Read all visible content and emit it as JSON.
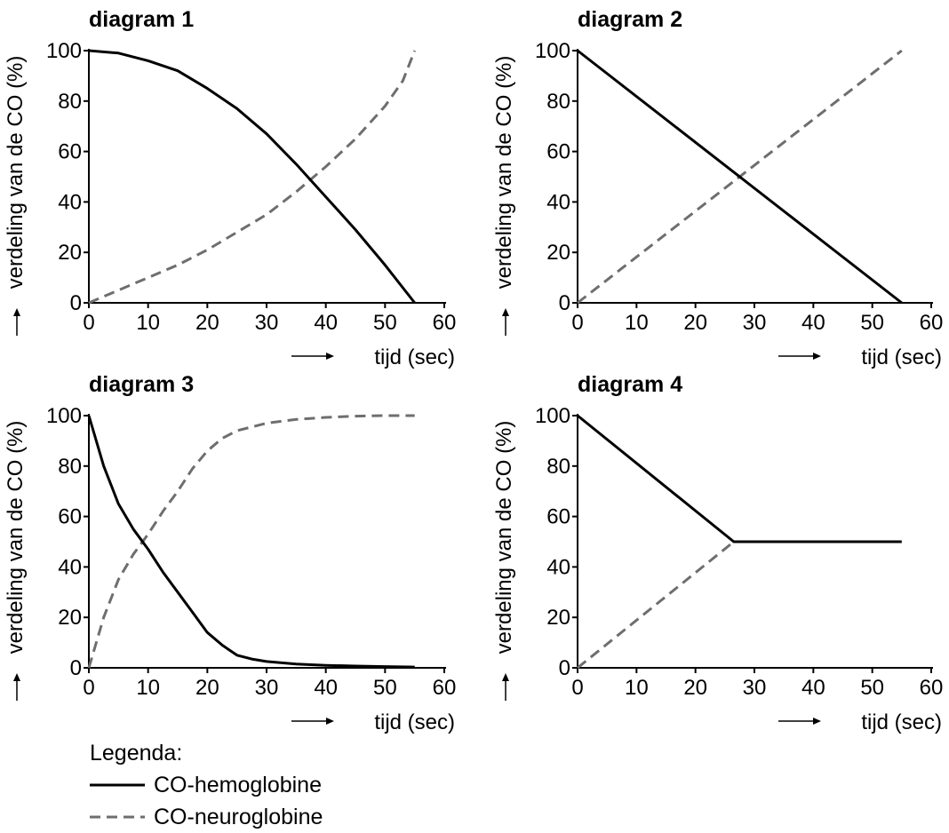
{
  "chart_data": [
    {
      "type": "line",
      "title": "diagram 1",
      "xlabel": "tijd (sec)",
      "ylabel": "verdeling van de CO (%)",
      "xlim": [
        0,
        60
      ],
      "ylim": [
        0,
        100
      ],
      "xticks": [
        0,
        10,
        20,
        30,
        40,
        50,
        60
      ],
      "yticks": [
        0,
        20,
        40,
        60,
        80,
        100
      ],
      "series": [
        {
          "name": "CO-hemoglobine",
          "style": "solid",
          "x": [
            0,
            5,
            10,
            15,
            20,
            25,
            30,
            35,
            40,
            45,
            50,
            55
          ],
          "y": [
            100,
            99,
            96,
            92,
            85,
            77,
            67,
            55,
            42,
            29,
            15,
            0
          ]
        },
        {
          "name": "CO-neuroglobine",
          "style": "dashed",
          "x": [
            0,
            5,
            10,
            15,
            20,
            25,
            30,
            35,
            40,
            45,
            50,
            53,
            55
          ],
          "y": [
            0,
            5,
            10,
            15,
            21,
            28,
            35,
            44,
            54,
            65,
            78,
            88,
            100
          ]
        }
      ]
    },
    {
      "type": "line",
      "title": "diagram 2",
      "xlabel": "tijd (sec)",
      "ylabel": "verdeling van de CO (%)",
      "xlim": [
        0,
        60
      ],
      "ylim": [
        0,
        100
      ],
      "xticks": [
        0,
        10,
        20,
        30,
        40,
        50,
        60
      ],
      "yticks": [
        0,
        20,
        40,
        60,
        80,
        100
      ],
      "series": [
        {
          "name": "CO-hemoglobine",
          "style": "solid",
          "x": [
            0,
            55
          ],
          "y": [
            100,
            0
          ]
        },
        {
          "name": "CO-neuroglobine",
          "style": "dashed",
          "x": [
            0,
            55
          ],
          "y": [
            0,
            100
          ]
        }
      ]
    },
    {
      "type": "line",
      "title": "diagram 3",
      "xlabel": "tijd (sec)",
      "ylabel": "verdeling van de CO (%)",
      "xlim": [
        0,
        60
      ],
      "ylim": [
        0,
        100
      ],
      "xticks": [
        0,
        10,
        20,
        30,
        40,
        50,
        60
      ],
      "yticks": [
        0,
        20,
        40,
        60,
        80,
        100
      ],
      "series": [
        {
          "name": "CO-hemoglobine",
          "style": "solid",
          "x": [
            0,
            2.5,
            5,
            7.5,
            10,
            12.5,
            15,
            17.5,
            20,
            22.5,
            25,
            27.5,
            30,
            35,
            40,
            45,
            50,
            55
          ],
          "y": [
            100,
            80,
            65,
            55,
            47,
            38,
            30,
            22,
            14,
            9,
            5,
            3.5,
            2.5,
            1.5,
            1,
            0.7,
            0.5,
            0.3
          ]
        },
        {
          "name": "CO-neuroglobine",
          "style": "dashed",
          "x": [
            0,
            2.5,
            5,
            7.5,
            10,
            12.5,
            15,
            17.5,
            20,
            22.5,
            25,
            30,
            35,
            40,
            45,
            50,
            55
          ],
          "y": [
            0,
            20,
            35,
            45,
            53,
            62,
            70,
            79,
            86,
            91,
            94,
            97,
            98.5,
            99.3,
            99.8,
            100,
            100
          ]
        }
      ]
    },
    {
      "type": "line",
      "title": "diagram 4",
      "xlabel": "tijd (sec)",
      "ylabel": "verdeling van de CO (%)",
      "xlim": [
        0,
        60
      ],
      "ylim": [
        0,
        100
      ],
      "xticks": [
        0,
        10,
        20,
        30,
        40,
        50,
        60
      ],
      "yticks": [
        0,
        20,
        40,
        60,
        80,
        100
      ],
      "series": [
        {
          "name": "CO-hemoglobine",
          "style": "solid",
          "x": [
            0,
            26.5,
            55
          ],
          "y": [
            100,
            50,
            50
          ]
        },
        {
          "name": "CO-neuroglobine",
          "style": "dashed",
          "x": [
            0,
            26.5,
            55
          ],
          "y": [
            0,
            50,
            50
          ]
        }
      ]
    }
  ],
  "legend": {
    "title": "Legenda:",
    "items": [
      {
        "label": "CO-hemoglobine",
        "style": "solid",
        "color": "#000000"
      },
      {
        "label": "CO-neuroglobine",
        "style": "dashed",
        "color": "#6e6e6e"
      }
    ]
  },
  "colors": {
    "solid": "#000000",
    "dashed": "#6e6e6e",
    "axis": "#000000"
  }
}
